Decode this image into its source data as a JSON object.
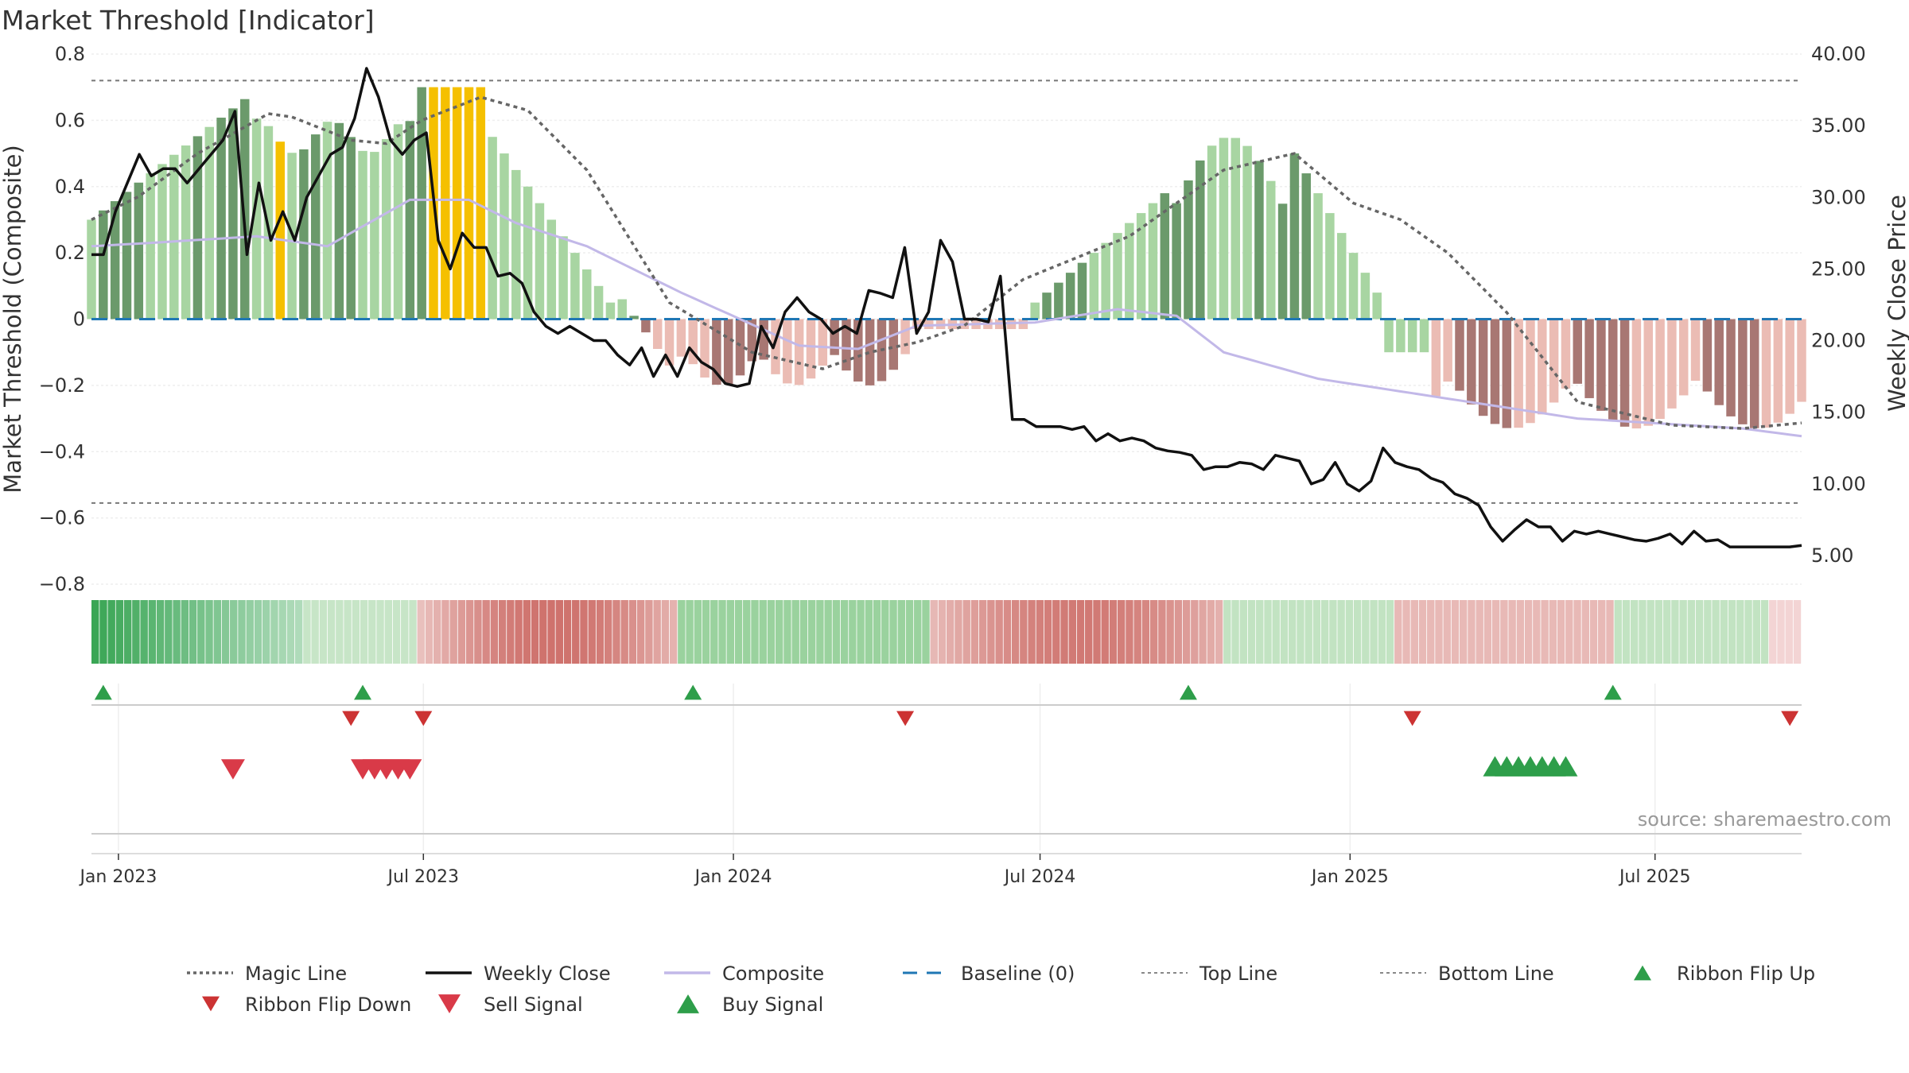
{
  "title": "Market Threshold [Indicator]",
  "source": "source: sharemaestro.com",
  "colors": {
    "strong_green": "#6b9a6b",
    "light_green": "#a8d5a2",
    "strong_red": "#a87773",
    "light_red": "#ebbcb4",
    "highlight": "#f5c000",
    "composite": "#c2b8e8",
    "close": "#111111",
    "magic": "#666666",
    "baseline": "#1f77b4",
    "signal_green": "#2e9e4a",
    "signal_red": "#d93a48",
    "ribbon_up": "#2e9e4a",
    "ribbon_down": "#cc3333"
  },
  "chart_data": {
    "type": "bar",
    "title": "Market Threshold [Indicator]",
    "ylabel": "Market Threshold (Composite)",
    "y2label": "Weekly Close Price",
    "ylim": [
      -0.8,
      0.8
    ],
    "y2lim": [
      3.0,
      40.0
    ],
    "yticks": [
      0.8,
      0.6,
      0.4,
      0.2,
      0,
      -0.2,
      -0.4,
      -0.6,
      -0.8
    ],
    "ytick_labels": [
      "0.8",
      "0.6",
      "0.4",
      "0.2",
      "0",
      "−0.2",
      "−0.4",
      "−0.6",
      "−0.8"
    ],
    "y2ticks": [
      40,
      35,
      30,
      25,
      20,
      15,
      10,
      5
    ],
    "y2tick_labels": [
      "40.00",
      "35.00",
      "30.00",
      "25.00",
      "20.00",
      "15.00",
      "10.00",
      "5.00"
    ],
    "x_start": "2022-12-16",
    "x_end": "2025-09-26",
    "x_step_days": 7,
    "xticks": [
      "2023-01-01",
      "2023-07-01",
      "2024-01-01",
      "2024-07-01",
      "2025-01-01",
      "2025-07-01"
    ],
    "xtick_labels": [
      "Jan 2023",
      "Jul 2023",
      "Jan 2024",
      "Jul 2024",
      "Jan 2025",
      "Jul 2025"
    ],
    "top_line": 0.72,
    "bottom_line": -0.555,
    "baseline": 0,
    "grid": true,
    "legend_position": "bottom",
    "series": [
      {
        "name": "Magic Line",
        "style": "dotted"
      },
      {
        "name": "Weekly Close",
        "style": "solid"
      },
      {
        "name": "Composite",
        "style": "solid"
      },
      {
        "name": "Baseline (0)",
        "style": "dashed"
      },
      {
        "name": "Top Line",
        "style": "dotted"
      },
      {
        "name": "Bottom Line",
        "style": "dotted"
      },
      {
        "name": "Ribbon Flip Up",
        "style": "marker-up"
      },
      {
        "name": "Ribbon Flip Down",
        "style": "marker-down"
      },
      {
        "name": "Sell Signal",
        "style": "marker-down"
      },
      {
        "name": "Buy Signal",
        "style": "marker-up"
      }
    ],
    "composite_anchors": [
      [
        0,
        0.22
      ],
      [
        5,
        0.23
      ],
      [
        14,
        0.25
      ],
      [
        20,
        0.22
      ],
      [
        27,
        0.36
      ],
      [
        32,
        0.36
      ],
      [
        36,
        0.29
      ],
      [
        42,
        0.22
      ],
      [
        50,
        0.08
      ],
      [
        60,
        -0.08
      ],
      [
        65,
        -0.09
      ],
      [
        70,
        -0.02
      ],
      [
        80,
        -0.01
      ],
      [
        87,
        0.03
      ],
      [
        92,
        0.01
      ],
      [
        96,
        -0.1
      ],
      [
        104,
        -0.18
      ],
      [
        115,
        -0.24
      ],
      [
        126,
        -0.3
      ],
      [
        140,
        -0.33
      ],
      [
        155,
        -0.4
      ],
      [
        165,
        -0.43
      ],
      [
        180,
        -0.53
      ],
      [
        190,
        -0.57
      ],
      [
        200,
        -0.6
      ],
      [
        210,
        -0.62
      ],
      [
        214,
        -0.63
      ]
    ],
    "magic_anchors": [
      [
        0,
        0.3
      ],
      [
        4,
        0.37
      ],
      [
        9,
        0.5
      ],
      [
        15,
        0.62
      ],
      [
        17,
        0.61
      ],
      [
        22,
        0.54
      ],
      [
        25,
        0.53
      ],
      [
        28,
        0.6
      ],
      [
        33,
        0.67
      ],
      [
        37,
        0.63
      ],
      [
        42,
        0.45
      ],
      [
        49,
        0.05
      ],
      [
        56,
        -0.1
      ],
      [
        62,
        -0.15
      ],
      [
        66,
        -0.1
      ],
      [
        70,
        -0.07
      ],
      [
        74,
        -0.02
      ],
      [
        79,
        0.12
      ],
      [
        88,
        0.25
      ],
      [
        96,
        0.45
      ],
      [
        102,
        0.5
      ],
      [
        107,
        0.35
      ],
      [
        111,
        0.3
      ],
      [
        115,
        0.2
      ],
      [
        120,
        0.02
      ],
      [
        126,
        -0.25
      ],
      [
        134,
        -0.32
      ],
      [
        140,
        -0.33
      ],
      [
        149,
        -0.3
      ],
      [
        156,
        -0.24
      ],
      [
        162,
        -0.2
      ],
      [
        168,
        -0.21
      ],
      [
        175,
        -0.25
      ],
      [
        182,
        -0.32
      ],
      [
        187,
        -0.42
      ],
      [
        190,
        -0.5
      ],
      [
        195,
        -0.53
      ],
      [
        197,
        -0.55
      ],
      [
        202,
        -0.47
      ],
      [
        209,
        -0.43
      ],
      [
        212,
        -0.38
      ],
      [
        217,
        -0.4
      ],
      [
        219,
        -0.42
      ]
    ],
    "close_values": [
      26,
      26,
      29,
      31,
      33,
      31.5,
      32,
      32,
      31,
      32,
      33,
      34,
      36,
      26,
      31,
      27,
      29,
      27,
      30,
      31.5,
      33,
      33.5,
      35.5,
      39,
      37,
      34,
      33,
      34,
      34.5,
      27,
      25,
      27.5,
      26.5,
      26.5,
      24.5,
      24.7,
      24,
      22,
      21,
      20.5,
      21,
      20.5,
      20,
      20,
      19,
      18.3,
      19.5,
      17.5,
      19,
      17.5,
      19.5,
      18.5,
      18,
      17,
      16.8,
      17,
      21,
      19.5,
      22,
      23,
      22,
      21.5,
      20.5,
      21,
      20.5,
      23.5,
      23.3,
      23,
      26.5,
      20.5,
      22,
      27,
      25.5,
      21.5,
      21.5,
      21.3,
      24.5,
      14.5,
      14.5,
      14,
      14,
      14,
      13.8,
      14,
      13,
      13.5,
      13,
      13.2,
      13,
      12.5,
      12.3,
      12.2,
      12,
      11,
      11.2,
      11.2,
      11.5,
      11.4,
      11,
      12,
      11.8,
      11.6,
      10,
      10.3,
      11.5,
      10,
      9.5,
      10.2,
      12.5,
      11.5,
      11.2,
      11,
      10.4,
      10.1,
      9.3,
      9,
      8.5,
      7,
      6,
      6.8,
      7.5,
      7,
      7,
      6,
      6.7,
      6.5,
      6.7,
      6.5,
      6.3,
      6.1,
      6,
      6.2,
      6.5,
      5.8,
      6.7,
      6,
      6.1,
      5.6,
      5.6,
      5.6,
      5.6,
      5.6,
      5.6,
      5.7
    ],
    "bars_approx_count": 219,
    "ribbon_approx_count": 210
  },
  "signals": {
    "ribbon_flip_up_dates": [
      "2022-12-23",
      "2023-05-26",
      "2023-12-08",
      "2024-09-27",
      "2025-06-06"
    ],
    "ribbon_flip_down_dates": [
      "2023-05-19",
      "2023-07-01",
      "2024-04-12",
      "2025-02-07",
      "2025-09-19"
    ],
    "sell_signal_dates": [
      "2023-03-10",
      "2023-05-26",
      "2023-06-02",
      "2023-06-09",
      "2023-06-16",
      "2023-06-23"
    ],
    "buy_signal_dates": [
      "2025-03-28",
      "2025-04-04",
      "2025-04-11",
      "2025-04-18",
      "2025-04-25",
      "2025-05-02",
      "2025-05-09"
    ]
  }
}
